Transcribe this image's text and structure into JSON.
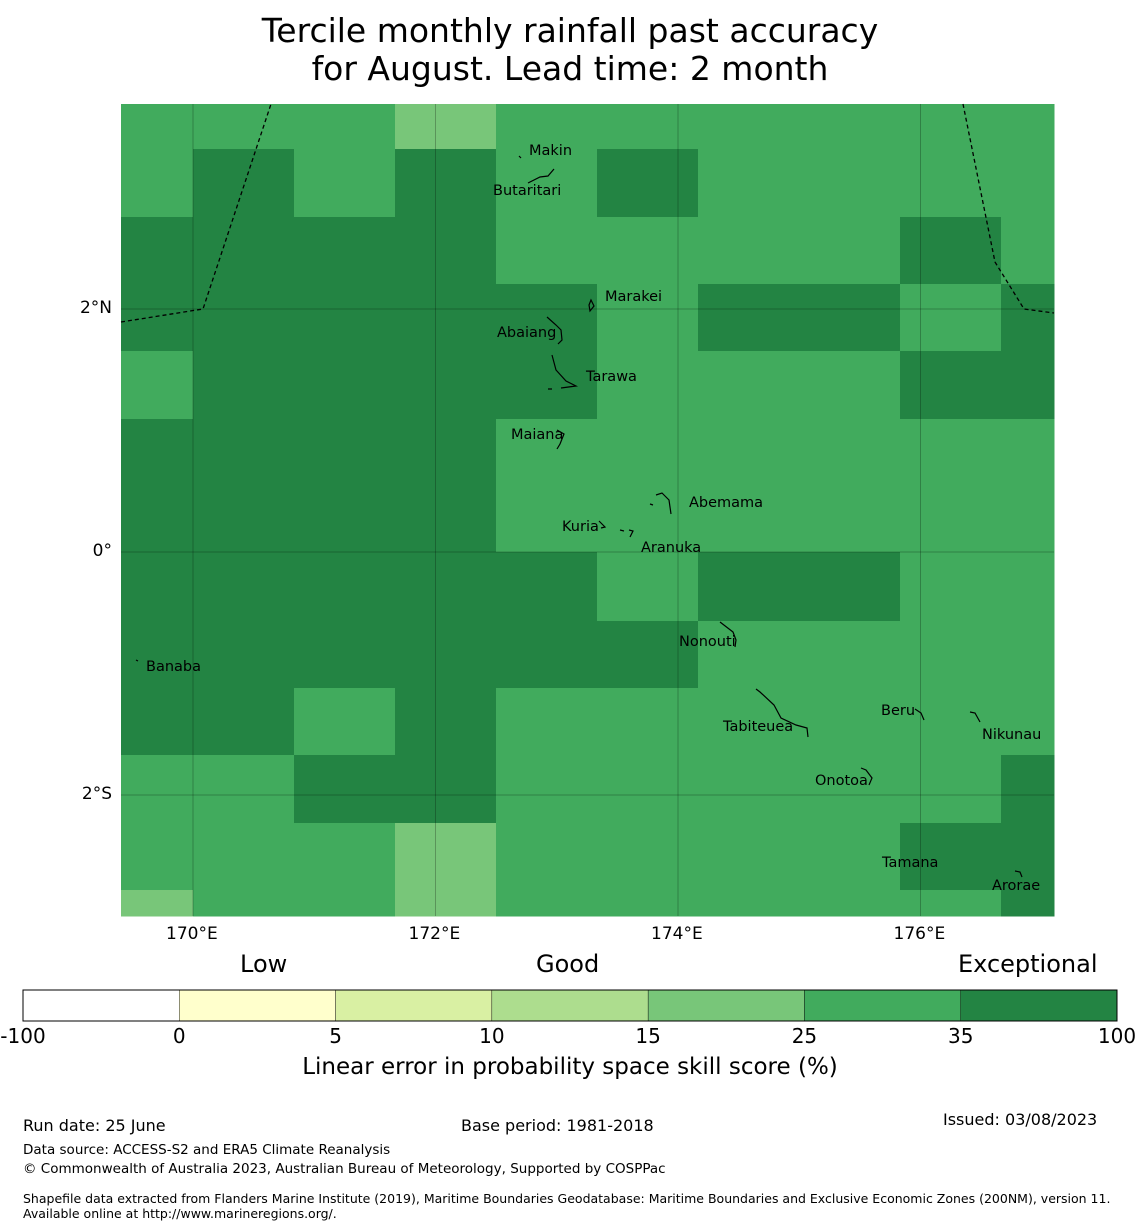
{
  "title_line1": "Tercile monthly rainfall past accuracy",
  "title_line2": "for August. Lead time: 2 month",
  "map": {
    "lon_ticks": [
      {
        "value": 170,
        "label": "170°E"
      },
      {
        "value": 172,
        "label": "172°E"
      },
      {
        "value": 174,
        "label": "174°E"
      },
      {
        "value": 176,
        "label": "176°E"
      }
    ],
    "lat_ticks": [
      {
        "value": 2,
        "label": "2°N"
      },
      {
        "value": 0,
        "label": "0°"
      },
      {
        "value": -2,
        "label": "2°S"
      }
    ],
    "lon_range": [
      169.4,
      177.1
    ],
    "lat_range": [
      -3.0,
      3.7
    ],
    "colors": {
      "band_25_35": "#41ab5d",
      "band_35_100": "#238443",
      "band_15_25": "#78c679"
    },
    "grid_codes": [
      "BBBBBBBBBBBBBBBBBBBBBBBBBBBBBBBBB",
      "BBBCCCCCCCCCCCCCCCCCCCBBBBBBBBBBB",
      "BBBCCCCCCCCCCCCCCCCCCCBBBBBBBBBBB",
      "BBBBBBBBBBBBBBBBBBBBBCCCCCCCCCBBB",
      "BBBBBBBBBBBBBBBBBBBBBCCCCCCCCCBBB",
      "BBBBBBBBBBBBBBBBBBBBBBBBBBBBBBBBB",
      "BBBBBBBBBBBBBBBBBBBBBBBBBBBBBBBBB"
    ],
    "cells": [
      "BBBBBBBBBBBBBBBBBBBBBBBBBBBBBBBBBBBBBBBBBB",
      "BBBBBBBBBBBBBBBBBBBBBBBBBBBBBBBBBBBBBBBBBB"
    ],
    "islands": [
      {
        "name": "Makin",
        "lon": 172.95,
        "lat": 3.3
      },
      {
        "name": "Butaritari",
        "lon": 172.8,
        "lat": 3.05
      },
      {
        "name": "Marakei",
        "lon": 173.3,
        "lat": 2.0
      },
      {
        "name": "Abaiang",
        "lon": 173.0,
        "lat": 1.85
      },
      {
        "name": "Tarawa",
        "lon": 173.0,
        "lat": 1.4
      },
      {
        "name": "Maiana",
        "lon": 173.0,
        "lat": 0.95
      },
      {
        "name": "Abemama",
        "lon": 173.85,
        "lat": 0.4
      },
      {
        "name": "Kuria",
        "lon": 173.4,
        "lat": 0.22
      },
      {
        "name": "Aranuka",
        "lon": 173.6,
        "lat": 0.15
      },
      {
        "name": "Nonouti",
        "lon": 174.4,
        "lat": -0.65
      },
      {
        "name": "Banaba",
        "lon": 169.53,
        "lat": -0.87
      },
      {
        "name": "Beru",
        "lon": 176.0,
        "lat": -1.33
      },
      {
        "name": "Nikunau",
        "lon": 176.45,
        "lat": -1.38
      },
      {
        "name": "Tabiteuea",
        "lon": 174.9,
        "lat": -1.4
      },
      {
        "name": "Onotoa",
        "lon": 175.55,
        "lat": -1.8
      },
      {
        "name": "Tamana",
        "lon": 175.98,
        "lat": -2.5
      },
      {
        "name": "Arorae",
        "lon": 176.8,
        "lat": -2.65
      }
    ]
  },
  "colorbar": {
    "categories": {
      "low": "Low",
      "good": "Good",
      "exceptional": "Exceptional"
    },
    "segments": [
      {
        "from": "-100",
        "to": "0",
        "color": "#ffffff"
      },
      {
        "from": "0",
        "to": "5",
        "color": "#ffffcc"
      },
      {
        "from": "5",
        "to": "10",
        "color": "#d9f0a3"
      },
      {
        "from": "10",
        "to": "15",
        "color": "#addd8e"
      },
      {
        "from": "15",
        "to": "25",
        "color": "#78c679"
      },
      {
        "from": "25",
        "to": "35",
        "color": "#41ab5d"
      },
      {
        "from": "35",
        "to": "100",
        "color": "#238443"
      }
    ],
    "tick_labels": [
      "-100",
      "0",
      "5",
      "10",
      "15",
      "25",
      "35",
      "100"
    ],
    "label": "Linear error in probability space skill score (%)"
  },
  "footer": {
    "run_date": "Run date: 25 June",
    "base_period": "Base period: 1981-2018",
    "issued": "Issued: 03/08/2023",
    "data_source": "Data source: ACCESS-S2 and ERA5 Climate Reanalysis",
    "copyright": "© Commonwealth of Australia 2023, Australian Bureau of Meteorology, Supported by COSPPac",
    "shapefile": "Shapefile data extracted from Flanders Marine Institute (2019), Maritime Boundaries Geodatabase: Maritime Boundaries and Exclusive Economic Zones (200NM), version 11. Available online at http://www.marineregions.org/."
  }
}
